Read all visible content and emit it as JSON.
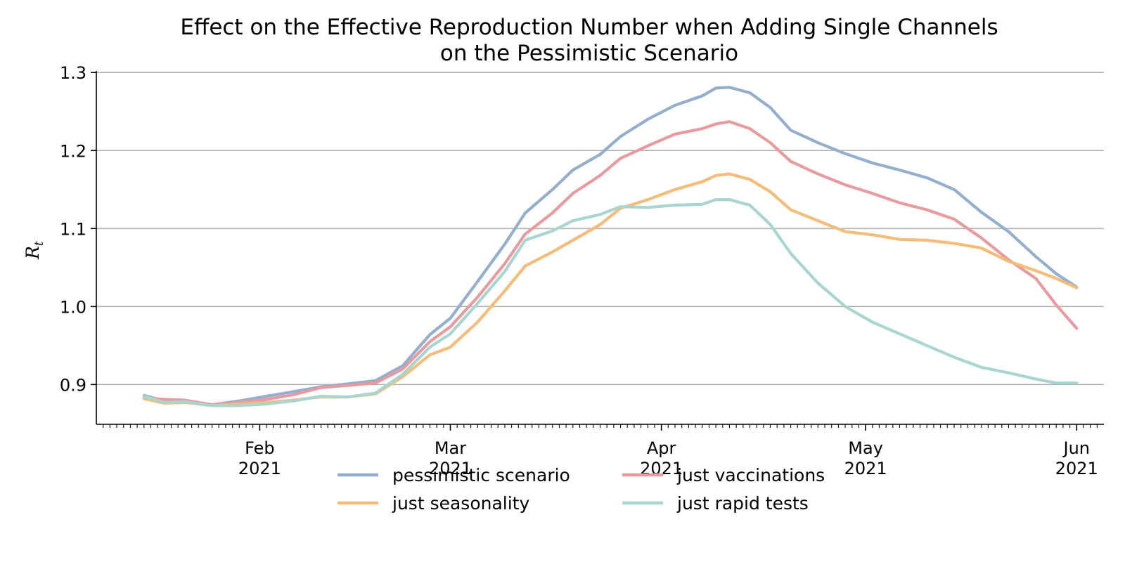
{
  "chart_data": {
    "type": "line",
    "title_line1": "Effect on the Effective Reproduction Number when Adding Single Channels",
    "title_line2": "on the Pessimistic Scenario",
    "xlabel": "",
    "ylabel": "R",
    "ylabel_subscript": "t",
    "x_domain": [
      "2021-01-08",
      "2021-06-05"
    ],
    "ylim": [
      0.849,
      1.302
    ],
    "yticks": [
      0.9,
      1.0,
      1.1,
      1.2,
      1.3
    ],
    "ytick_labels": [
      "0.9",
      "1.0",
      "1.1",
      "1.2",
      "1.3"
    ],
    "x_major_ticks": [
      {
        "date": "2021-02-01",
        "month": "Feb",
        "year": "2021"
      },
      {
        "date": "2021-03-01",
        "month": "Mar",
        "year": "2021"
      },
      {
        "date": "2021-04-01",
        "month": "Apr",
        "year": "2021"
      },
      {
        "date": "2021-05-01",
        "month": "May",
        "year": "2021"
      },
      {
        "date": "2021-06-01",
        "month": "Jun",
        "year": "2021"
      }
    ],
    "grid": "horizontal",
    "legend_position": "bottom-center",
    "series": [
      {
        "name": "pessimistic scenario",
        "color": "#94AECD",
        "points": [
          [
            "2021-01-15",
            0.886
          ],
          [
            "2021-01-18",
            0.879
          ],
          [
            "2021-01-21",
            0.879
          ],
          [
            "2021-01-25",
            0.874
          ],
          [
            "2021-01-29",
            0.879
          ],
          [
            "2021-02-02",
            0.885
          ],
          [
            "2021-02-06",
            0.891
          ],
          [
            "2021-02-10",
            0.897
          ],
          [
            "2021-02-14",
            0.901
          ],
          [
            "2021-02-18",
            0.905
          ],
          [
            "2021-02-22",
            0.924
          ],
          [
            "2021-02-26",
            0.964
          ],
          [
            "2021-03-01",
            0.985
          ],
          [
            "2021-03-05",
            1.032
          ],
          [
            "2021-03-09",
            1.08
          ],
          [
            "2021-03-12",
            1.12
          ],
          [
            "2021-03-16",
            1.15
          ],
          [
            "2021-03-19",
            1.175
          ],
          [
            "2021-03-23",
            1.195
          ],
          [
            "2021-03-26",
            1.218
          ],
          [
            "2021-03-30",
            1.24
          ],
          [
            "2021-04-03",
            1.258
          ],
          [
            "2021-04-07",
            1.27
          ],
          [
            "2021-04-09",
            1.28
          ],
          [
            "2021-04-11",
            1.281
          ],
          [
            "2021-04-14",
            1.274
          ],
          [
            "2021-04-17",
            1.255
          ],
          [
            "2021-04-20",
            1.226
          ],
          [
            "2021-04-24",
            1.21
          ],
          [
            "2021-04-28",
            1.196
          ],
          [
            "2021-05-02",
            1.184
          ],
          [
            "2021-05-06",
            1.175
          ],
          [
            "2021-05-10",
            1.165
          ],
          [
            "2021-05-14",
            1.15
          ],
          [
            "2021-05-18",
            1.121
          ],
          [
            "2021-05-22",
            1.096
          ],
          [
            "2021-05-26",
            1.064
          ],
          [
            "2021-05-29",
            1.042
          ],
          [
            "2021-06-01",
            1.025
          ]
        ]
      },
      {
        "name": "just vaccinations",
        "color": "#E89A9E",
        "points": [
          [
            "2021-01-15",
            0.883
          ],
          [
            "2021-01-18",
            0.881
          ],
          [
            "2021-01-21",
            0.88
          ],
          [
            "2021-01-25",
            0.874
          ],
          [
            "2021-01-29",
            0.877
          ],
          [
            "2021-02-02",
            0.881
          ],
          [
            "2021-02-06",
            0.887
          ],
          [
            "2021-02-10",
            0.896
          ],
          [
            "2021-02-14",
            0.899
          ],
          [
            "2021-02-18",
            0.902
          ],
          [
            "2021-02-22",
            0.92
          ],
          [
            "2021-02-26",
            0.955
          ],
          [
            "2021-03-01",
            0.974
          ],
          [
            "2021-03-05",
            1.012
          ],
          [
            "2021-03-09",
            1.055
          ],
          [
            "2021-03-12",
            1.093
          ],
          [
            "2021-03-16",
            1.12
          ],
          [
            "2021-03-19",
            1.145
          ],
          [
            "2021-03-23",
            1.168
          ],
          [
            "2021-03-26",
            1.19
          ],
          [
            "2021-03-30",
            1.206
          ],
          [
            "2021-04-03",
            1.221
          ],
          [
            "2021-04-07",
            1.228
          ],
          [
            "2021-04-09",
            1.234
          ],
          [
            "2021-04-11",
            1.237
          ],
          [
            "2021-04-14",
            1.228
          ],
          [
            "2021-04-17",
            1.21
          ],
          [
            "2021-04-20",
            1.186
          ],
          [
            "2021-04-24",
            1.17
          ],
          [
            "2021-04-28",
            1.156
          ],
          [
            "2021-05-02",
            1.145
          ],
          [
            "2021-05-06",
            1.133
          ],
          [
            "2021-05-10",
            1.124
          ],
          [
            "2021-05-14",
            1.112
          ],
          [
            "2021-05-18",
            1.088
          ],
          [
            "2021-05-22",
            1.06
          ],
          [
            "2021-05-26",
            1.036
          ],
          [
            "2021-05-29",
            1.002
          ],
          [
            "2021-06-01",
            0.972
          ]
        ]
      },
      {
        "name": "just seasonality",
        "color": "#F5BB78",
        "points": [
          [
            "2021-01-15",
            0.882
          ],
          [
            "2021-01-18",
            0.876
          ],
          [
            "2021-01-21",
            0.877
          ],
          [
            "2021-01-25",
            0.873
          ],
          [
            "2021-01-29",
            0.875
          ],
          [
            "2021-02-02",
            0.877
          ],
          [
            "2021-02-06",
            0.88
          ],
          [
            "2021-02-10",
            0.884
          ],
          [
            "2021-02-14",
            0.884
          ],
          [
            "2021-02-18",
            0.888
          ],
          [
            "2021-02-22",
            0.91
          ],
          [
            "2021-02-26",
            0.938
          ],
          [
            "2021-03-01",
            0.948
          ],
          [
            "2021-03-05",
            0.98
          ],
          [
            "2021-03-09",
            1.02
          ],
          [
            "2021-03-12",
            1.052
          ],
          [
            "2021-03-16",
            1.07
          ],
          [
            "2021-03-19",
            1.085
          ],
          [
            "2021-03-23",
            1.105
          ],
          [
            "2021-03-26",
            1.126
          ],
          [
            "2021-03-30",
            1.137
          ],
          [
            "2021-04-03",
            1.15
          ],
          [
            "2021-04-07",
            1.16
          ],
          [
            "2021-04-09",
            1.168
          ],
          [
            "2021-04-11",
            1.17
          ],
          [
            "2021-04-14",
            1.163
          ],
          [
            "2021-04-17",
            1.147
          ],
          [
            "2021-04-20",
            1.124
          ],
          [
            "2021-04-24",
            1.11
          ],
          [
            "2021-04-28",
            1.096
          ],
          [
            "2021-05-02",
            1.092
          ],
          [
            "2021-05-06",
            1.086
          ],
          [
            "2021-05-10",
            1.085
          ],
          [
            "2021-05-14",
            1.081
          ],
          [
            "2021-05-18",
            1.075
          ],
          [
            "2021-05-22",
            1.058
          ],
          [
            "2021-05-26",
            1.046
          ],
          [
            "2021-05-29",
            1.036
          ],
          [
            "2021-06-01",
            1.024
          ]
        ]
      },
      {
        "name": "just rapid tests",
        "color": "#A8D5D0",
        "points": [
          [
            "2021-01-15",
            0.885
          ],
          [
            "2021-01-18",
            0.877
          ],
          [
            "2021-01-21",
            0.878
          ],
          [
            "2021-01-25",
            0.873
          ],
          [
            "2021-01-29",
            0.873
          ],
          [
            "2021-02-02",
            0.875
          ],
          [
            "2021-02-06",
            0.879
          ],
          [
            "2021-02-10",
            0.885
          ],
          [
            "2021-02-14",
            0.884
          ],
          [
            "2021-02-18",
            0.889
          ],
          [
            "2021-02-22",
            0.913
          ],
          [
            "2021-02-26",
            0.948
          ],
          [
            "2021-03-01",
            0.965
          ],
          [
            "2021-03-05",
            1.004
          ],
          [
            "2021-03-09",
            1.045
          ],
          [
            "2021-03-12",
            1.085
          ],
          [
            "2021-03-16",
            1.097
          ],
          [
            "2021-03-19",
            1.11
          ],
          [
            "2021-03-23",
            1.118
          ],
          [
            "2021-03-26",
            1.128
          ],
          [
            "2021-03-30",
            1.127
          ],
          [
            "2021-04-03",
            1.13
          ],
          [
            "2021-04-07",
            1.131
          ],
          [
            "2021-04-09",
            1.137
          ],
          [
            "2021-04-11",
            1.137
          ],
          [
            "2021-04-14",
            1.13
          ],
          [
            "2021-04-17",
            1.105
          ],
          [
            "2021-04-20",
            1.068
          ],
          [
            "2021-04-24",
            1.03
          ],
          [
            "2021-04-28",
            1.0
          ],
          [
            "2021-05-02",
            0.98
          ],
          [
            "2021-05-06",
            0.965
          ],
          [
            "2021-05-10",
            0.95
          ],
          [
            "2021-05-14",
            0.935
          ],
          [
            "2021-05-18",
            0.922
          ],
          [
            "2021-05-22",
            0.915
          ],
          [
            "2021-05-26",
            0.907
          ],
          [
            "2021-05-29",
            0.902
          ],
          [
            "2021-06-01",
            0.902
          ]
        ]
      }
    ],
    "legend_layout": [
      [
        "pessimistic scenario",
        "just vaccinations"
      ],
      [
        "just seasonality",
        "just rapid tests"
      ]
    ]
  }
}
